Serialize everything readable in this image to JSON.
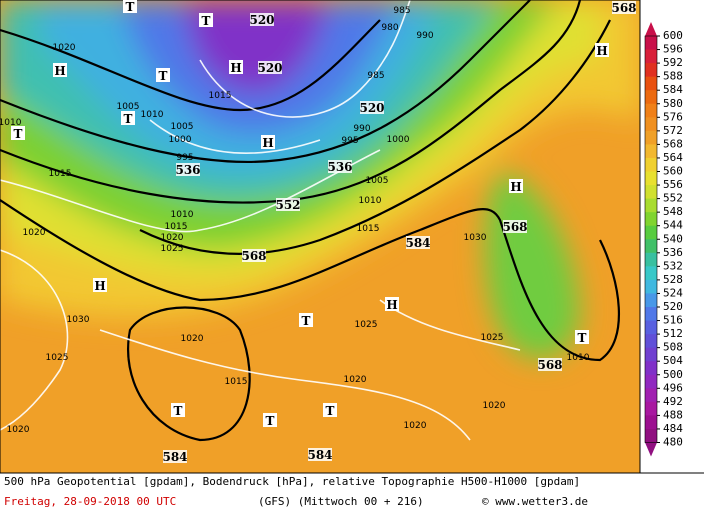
{
  "map": {
    "contour_labels": [
      520,
      520,
      536,
      536,
      552,
      568,
      584,
      568,
      568,
      584,
      584,
      520,
      568
    ],
    "pressure_centers": [
      "H",
      "H",
      "H",
      "H",
      "H",
      "H",
      "H",
      "T",
      "T",
      "T",
      "T",
      "T",
      "T",
      "T",
      "T",
      "T",
      "T"
    ],
    "isobar_labels": [
      1020,
      1015,
      1010,
      1005,
      1000,
      995,
      1005,
      1010,
      1015,
      1020,
      1025,
      1015,
      1020,
      1030,
      1025,
      1020,
      1015,
      1020,
      1025,
      1030,
      1025,
      1010,
      1020,
      1020,
      1020,
      980,
      985,
      990,
      985,
      990,
      995,
      1000,
      1005,
      1010,
      1015,
      1010
    ]
  },
  "legend": {
    "ticks": [
      600,
      596,
      592,
      588,
      584,
      580,
      576,
      572,
      568,
      564,
      560,
      556,
      552,
      548,
      544,
      540,
      536,
      532,
      528,
      524,
      520,
      516,
      512,
      508,
      504,
      500,
      496,
      492,
      488,
      484,
      480
    ],
    "colors": [
      "#c8104a",
      "#d8203a",
      "#e03020",
      "#e85010",
      "#ec6a10",
      "#f08018",
      "#f09020",
      "#f0a028",
      "#f2b830",
      "#f0d030",
      "#e8e030",
      "#d0e030",
      "#a8dc30",
      "#80d430",
      "#58cc40",
      "#40c068",
      "#38c0a0",
      "#38c8c8",
      "#40b8e0",
      "#4898e8",
      "#5078e8",
      "#5860e0",
      "#6050d8",
      "#7040d0",
      "#8030c8",
      "#9028c0",
      "#a020b0",
      "#a818a0",
      "#9c1090",
      "#901080"
    ]
  },
  "caption": {
    "line1": "500 hPa Geopotential [gpdam], Bodendruck [hPa], relative Topographie H500-H1000 [gpdam]",
    "date": "Freitag, 28-09-2018  00 UTC",
    "model": "(GFS)  (Mittwoch 00 + 216)",
    "copyright": "© www.wetter3.de"
  }
}
